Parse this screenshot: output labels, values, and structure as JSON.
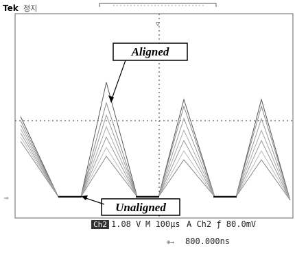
{
  "header": {
    "brand": "Tek",
    "status": "정지"
  },
  "annotations": {
    "aligned": "Aligned",
    "unaligned": "Unaligned"
  },
  "readout": {
    "channel": "Ch2",
    "volts_per_div": "1.08 V",
    "timebase": "M 100µs",
    "trigger": "A Ch2 ƒ 80.0mV",
    "position": "800.000ns"
  }
}
